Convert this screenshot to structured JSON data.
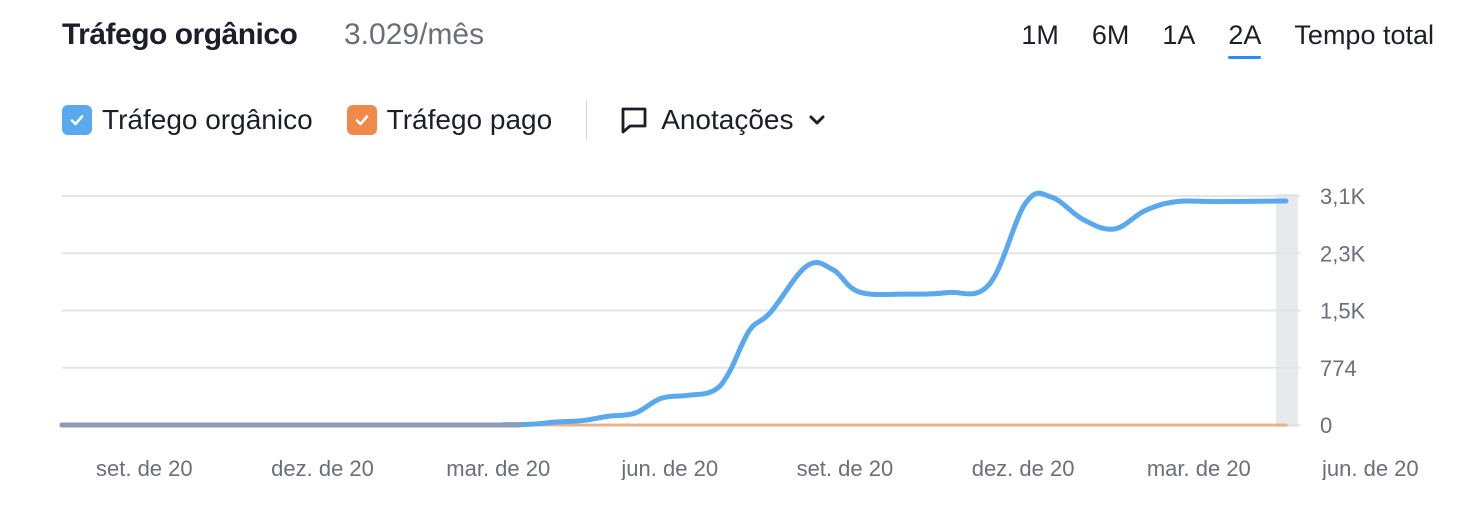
{
  "header": {
    "title": "Tráfego orgânico",
    "value": "3.029/mês",
    "ranges": [
      "1M",
      "6M",
      "1A",
      "2A",
      "Tempo total"
    ],
    "active_range": "2A"
  },
  "legend": {
    "items": [
      {
        "label": "Tráfego orgânico",
        "color": "#5aa9ee",
        "checked": true
      },
      {
        "label": "Tráfego pago",
        "color": "#f08a4b",
        "checked": true
      }
    ],
    "annotations_label": "Anotações"
  },
  "chart_data": {
    "type": "line",
    "y_ticks": [
      "3,1K",
      "2,3K",
      "1,5K",
      "774",
      "0"
    ],
    "y_tick_values": [
      3096,
      2322,
      1548,
      774,
      0
    ],
    "ylim": [
      0,
      3096
    ],
    "x_ticks": [
      "set. de 20",
      "dez. de 20",
      "mar. de 20",
      "jun. de 20",
      "set. de 20",
      "dez. de 20",
      "mar. de 20",
      "jun. de 20"
    ],
    "x_range_months": [
      0,
      23.5
    ],
    "grid": true,
    "series": [
      {
        "name": "Tráfego orgânico",
        "color": "#5aa9ee",
        "points": [
          [
            0,
            0
          ],
          [
            8,
            0
          ],
          [
            8.5,
            5
          ],
          [
            9,
            10
          ],
          [
            9.5,
            40
          ],
          [
            10,
            60
          ],
          [
            10.5,
            120
          ],
          [
            11,
            160
          ],
          [
            11.5,
            360
          ],
          [
            12,
            400
          ],
          [
            12.5,
            460
          ],
          [
            12.8,
            700
          ],
          [
            13.2,
            1280
          ],
          [
            13.6,
            1520
          ],
          [
            14.3,
            2150
          ],
          [
            14.8,
            2100
          ],
          [
            15.3,
            1800
          ],
          [
            16.2,
            1770
          ],
          [
            17,
            1790
          ],
          [
            17.8,
            1900
          ],
          [
            18.5,
            3000
          ],
          [
            19,
            3080
          ],
          [
            19.6,
            2780
          ],
          [
            20.2,
            2650
          ],
          [
            20.8,
            2900
          ],
          [
            21.4,
            3020
          ],
          [
            22.2,
            3020
          ],
          [
            23.5,
            3029
          ]
        ]
      },
      {
        "name": "Tráfego pago",
        "color": "#f08a4b",
        "points": [
          [
            0,
            0
          ],
          [
            23.5,
            0
          ]
        ]
      }
    ]
  }
}
